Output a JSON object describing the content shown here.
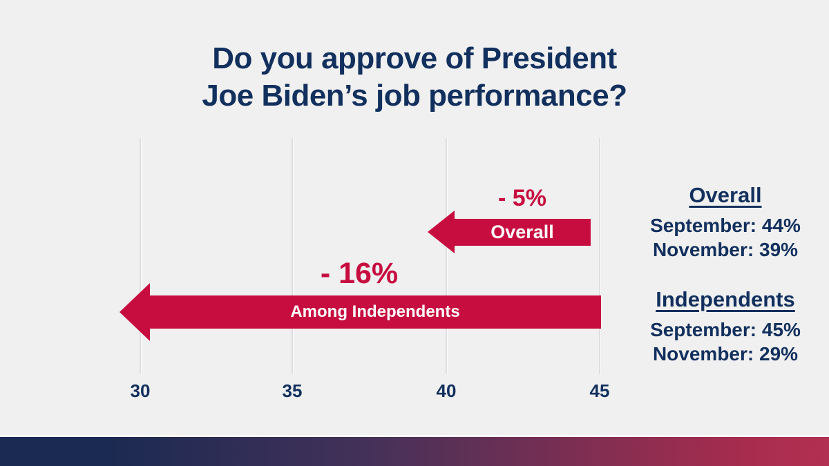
{
  "title": {
    "line1": "Do you approve of President",
    "line2": "Joe Biden’s job performance?"
  },
  "chart": {
    "axis_ticks": [
      "30",
      "35",
      "40",
      "45"
    ],
    "arrows": [
      {
        "delta_label": "- 5%",
        "bar_label": "Overall",
        "from": 44,
        "to": 39
      },
      {
        "delta_label": "- 16%",
        "bar_label": "Among Independents",
        "from": 45,
        "to": 29
      }
    ]
  },
  "legend": {
    "overall": {
      "heading": "Overall",
      "september": "September: 44%",
      "november": "November: 39%"
    },
    "independents": {
      "heading": "Independents",
      "september": "September: 45%",
      "november": "November: 29%"
    }
  },
  "colors": {
    "background": "#F0F0F0",
    "navy_text": "#12305E",
    "arrow_crimson": "#C70D3F",
    "arrow_text": "#FFFFFF",
    "gridline": "#DEDEE0",
    "footer_gradient_start": "#1B2A52",
    "footer_gradient_end": "#B23052"
  },
  "chart_data": {
    "type": "bar",
    "subtype": "horizontal-decline-arrows",
    "title": "Do you approve of President Joe Biden’s job performance?",
    "categories": [
      "Overall",
      "Among Independents"
    ],
    "series": [
      {
        "name": "September",
        "values": [
          44,
          45
        ]
      },
      {
        "name": "November",
        "values": [
          39,
          29
        ]
      }
    ],
    "deltas": [
      -5,
      -16
    ],
    "delta_labels": [
      "- 5%",
      "- 16%"
    ],
    "xlabel": "",
    "ylabel": "",
    "xticks": [
      30,
      35,
      40,
      45
    ],
    "xlim": [
      28,
      46
    ],
    "grid": "vertical",
    "legend_position": "right",
    "annotations": [
      "Overall — September: 44%, November: 39%",
      "Independents — September: 45%, November: 29%"
    ]
  }
}
